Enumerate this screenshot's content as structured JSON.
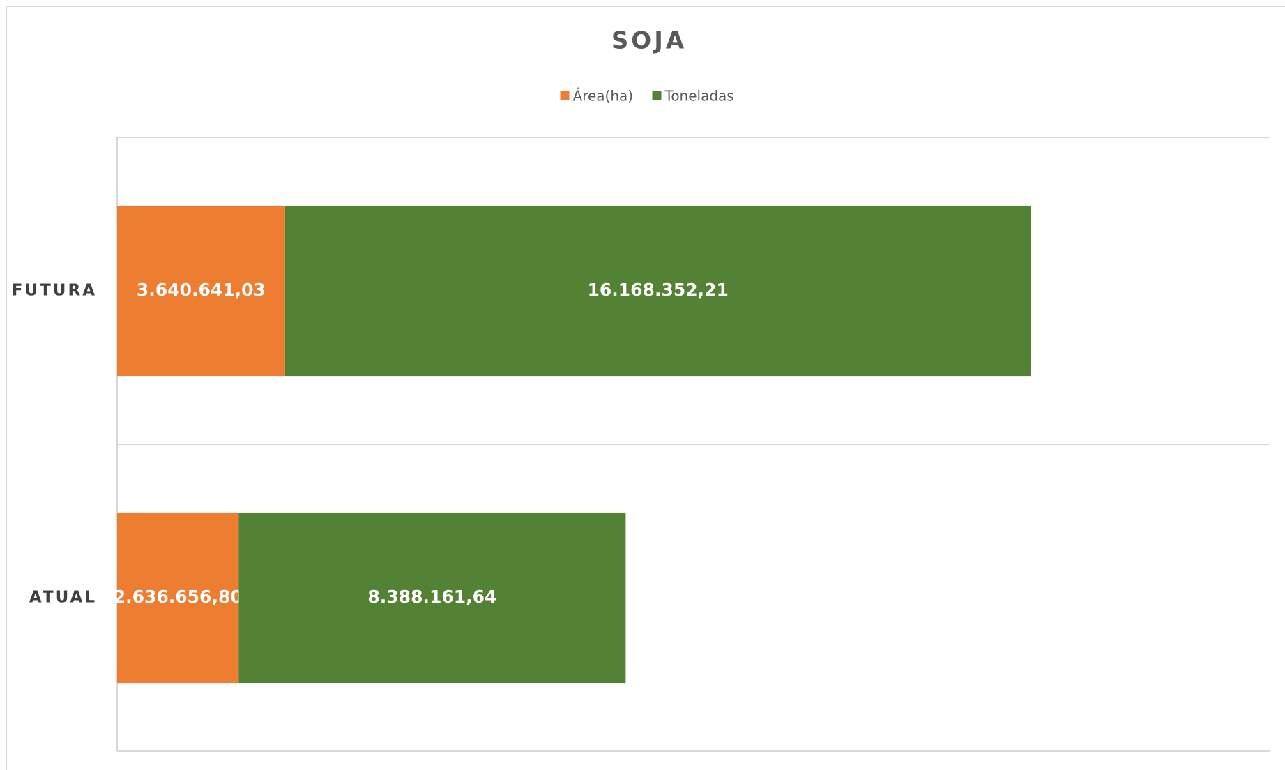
{
  "chart_data": {
    "type": "stacked_barh",
    "title": "SOJA",
    "categories": [
      "FUTURA",
      "ATUAL"
    ],
    "series": [
      {
        "name": "Área(ha)",
        "color": "#ED7D31",
        "values": [
          3640641.03,
          2636656.8
        ],
        "value_labels": [
          "3.640.641,03",
          "2.636.656,80"
        ]
      },
      {
        "name": "Toneladas",
        "color": "#548235",
        "values": [
          16168352.21,
          8388161.64
        ],
        "value_labels": [
          "16.168.352,21",
          "8.388.161,64"
        ]
      }
    ],
    "xlim": [
      0,
      25000000
    ],
    "legend": "top"
  }
}
